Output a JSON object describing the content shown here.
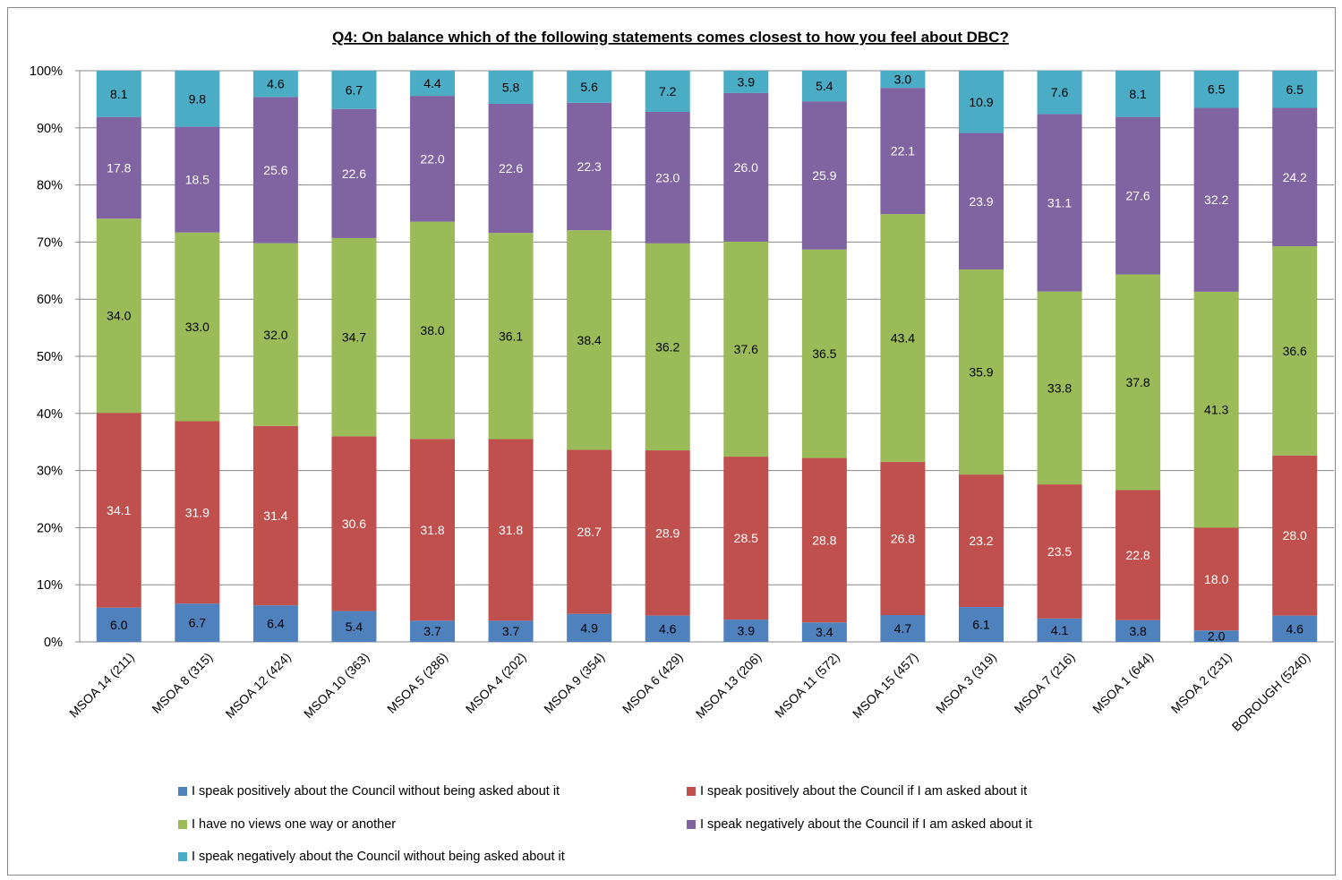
{
  "chart_data": {
    "type": "bar",
    "stacked": true,
    "percent_stacked": true,
    "title": "Q4: On balance which of the following statements comes closest to how you feel about DBC?",
    "categories": [
      "MSOA 14 (211)",
      "MSOA 8 (315)",
      "MSOA 12 (424)",
      "MSOA 10 (363)",
      "MSOA 5 (286)",
      "MSOA 4 (202)",
      "MSOA 9 (354)",
      "MSOA 6 (429)",
      "MSOA 13 (206)",
      "MSOA 11 (572)",
      "MSOA 15 (457)",
      "MSOA 3 (319)",
      "MSOA 7 (216)",
      "MSOA 1 (644)",
      "MSOA 2 (231)",
      "BOROUGH (5240)"
    ],
    "y_ticks": [
      "0%",
      "10%",
      "20%",
      "30%",
      "40%",
      "50%",
      "60%",
      "70%",
      "80%",
      "90%",
      "100%"
    ],
    "ylim": [
      0,
      100
    ],
    "grid": true,
    "legend_position": "bottom",
    "series": [
      {
        "name": "I speak positively about the Council without being asked about it",
        "color": "#4F81BD",
        "label_color": "#000000",
        "values": [
          6.0,
          6.7,
          6.4,
          5.4,
          3.7,
          3.7,
          4.9,
          4.6,
          3.9,
          3.4,
          4.7,
          6.1,
          4.1,
          3.8,
          2.0,
          4.6
        ]
      },
      {
        "name": "I speak positively about the Council if I am asked about it",
        "color": "#C0504D",
        "label_color": "#FFFFFF",
        "values": [
          34.1,
          31.9,
          31.4,
          30.6,
          31.8,
          31.8,
          28.7,
          28.9,
          28.5,
          28.8,
          26.8,
          23.2,
          23.5,
          22.8,
          18.0,
          28.0
        ]
      },
      {
        "name": "I have no views one way or another",
        "color": "#9BBB59",
        "label_color": "#000000",
        "values": [
          34.0,
          33.0,
          32.0,
          34.7,
          38.0,
          36.1,
          38.4,
          36.2,
          37.6,
          36.5,
          43.4,
          35.9,
          33.8,
          37.8,
          41.3,
          36.6
        ]
      },
      {
        "name": "I speak negatively about the Council if I am asked about it",
        "color": "#8064A2",
        "label_color": "#FFFFFF",
        "values": [
          17.8,
          18.5,
          25.6,
          22.6,
          22.0,
          22.6,
          22.3,
          23.0,
          26.0,
          25.9,
          22.1,
          23.9,
          31.1,
          27.6,
          32.2,
          24.2
        ]
      },
      {
        "name": "I speak negatively about the Council without being asked about it",
        "color": "#4BACC6",
        "label_color": "#000000",
        "values": [
          8.1,
          9.8,
          4.6,
          6.7,
          4.4,
          5.8,
          5.6,
          7.2,
          3.9,
          5.4,
          3.0,
          10.9,
          7.6,
          8.1,
          6.5,
          6.5
        ]
      }
    ]
  }
}
